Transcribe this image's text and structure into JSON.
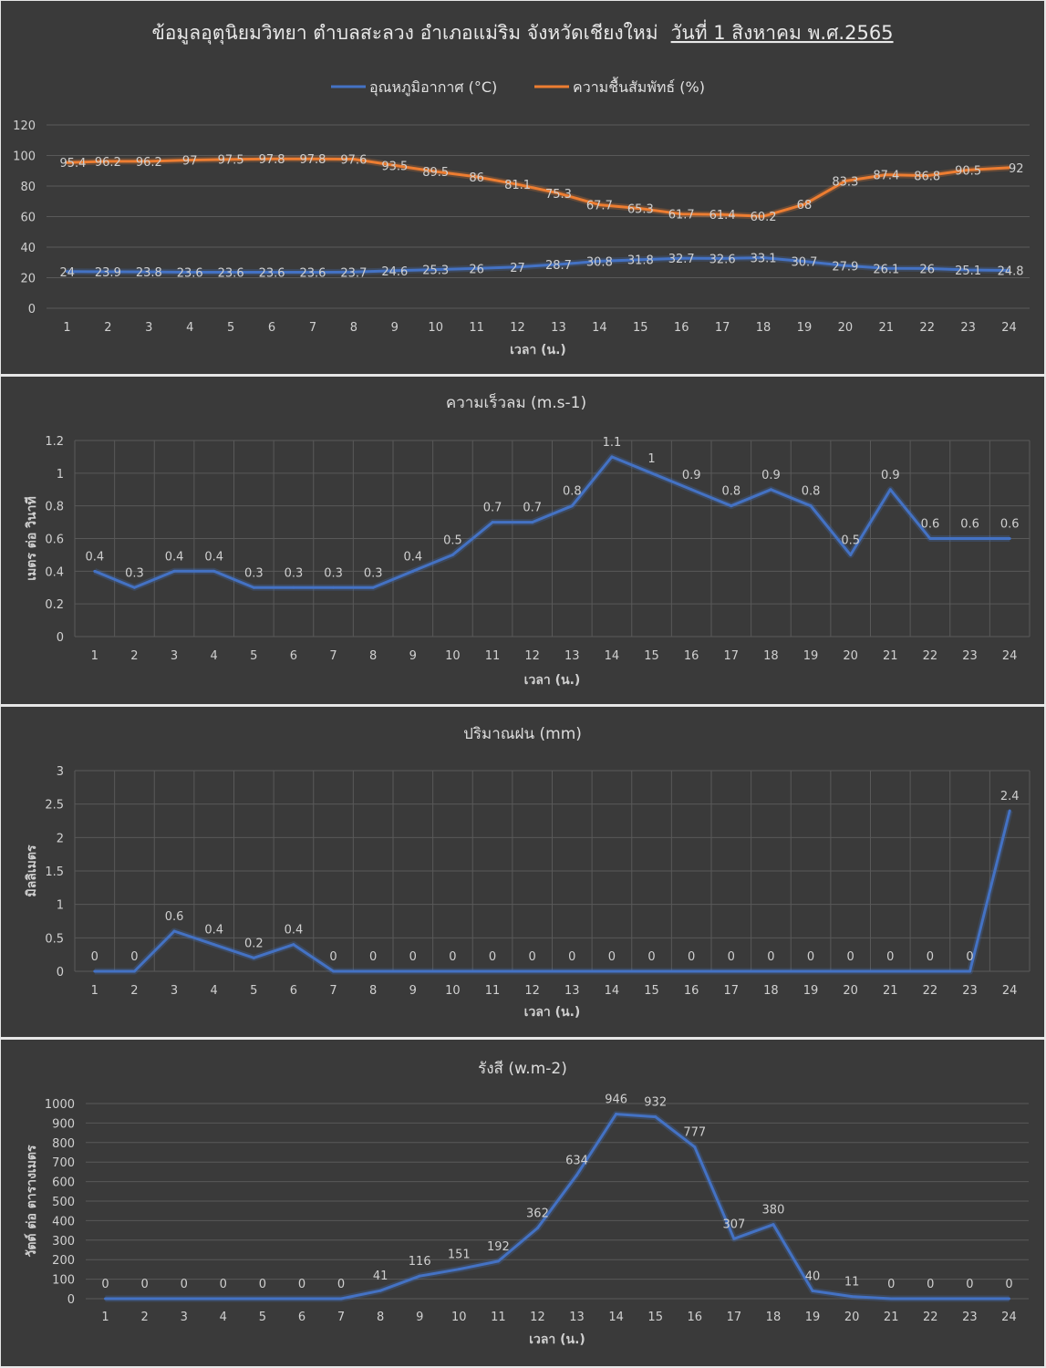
{
  "main_title": "ข้อมูลอุตุนิยมวิทยา ตำบลสะลวง อำเภอแม่ริม จังหวัดเชียงใหม่",
  "main_title_date": "วันที่ 1 สิงหาคม พ.ศ.2565",
  "colors": {
    "background": "#3a3a3a",
    "grid": "#595959",
    "blue": "#4472c4",
    "orange": "#ed7d31",
    "text": "#d0d0d0"
  },
  "chart_data": [
    {
      "type": "line",
      "title": "",
      "xlabel": "เวลา (น.)",
      "ylabel": "",
      "x": [
        1,
        2,
        3,
        4,
        5,
        6,
        7,
        8,
        9,
        10,
        11,
        12,
        13,
        14,
        15,
        16,
        17,
        18,
        19,
        20,
        21,
        22,
        23,
        24
      ],
      "yticks": [
        "0",
        "20",
        "40",
        "60",
        "80",
        "100",
        "120"
      ],
      "ylim": [
        0,
        120
      ],
      "grid": "horizontal",
      "legend": "top",
      "series": [
        {
          "name": "อุณหภูมิอากาศ (°C)",
          "color": "#4472c4",
          "values": [
            24,
            23.9,
            23.8,
            23.6,
            23.6,
            23.6,
            23.6,
            23.7,
            24.6,
            25.3,
            26,
            27,
            28.7,
            30.8,
            31.8,
            32.7,
            32.6,
            33.1,
            30.7,
            27.9,
            26.1,
            26,
            25.1,
            24.8
          ]
        },
        {
          "name": "ความชื้นสัมพัทธ์ (%)",
          "color": "#ed7d31",
          "values": [
            95.4,
            96.2,
            96.2,
            97,
            97.5,
            97.8,
            97.8,
            97.6,
            93.5,
            89.5,
            86,
            81.1,
            75.3,
            67.7,
            65.3,
            61.7,
            61.4,
            60.2,
            68,
            83.3,
            87.4,
            86.8,
            90.5,
            92
          ]
        }
      ]
    },
    {
      "type": "line",
      "title": "ความเร็วลม (m.s-1)",
      "xlabel": "เวลา (น.)",
      "ylabel": "เมตร ต่อ วินาที",
      "x": [
        1,
        2,
        3,
        4,
        5,
        6,
        7,
        8,
        9,
        10,
        11,
        12,
        13,
        14,
        15,
        16,
        17,
        18,
        19,
        20,
        21,
        22,
        23,
        24
      ],
      "yticks": [
        "0",
        "0.2",
        "0.4",
        "0.6",
        "0.8",
        "1",
        "1.2"
      ],
      "ylim": [
        0,
        1.2
      ],
      "grid": "both",
      "series": [
        {
          "color": "#4472c4",
          "values": [
            0.4,
            0.3,
            0.4,
            0.4,
            0.3,
            0.3,
            0.3,
            0.3,
            0.4,
            0.5,
            0.7,
            0.7,
            0.8,
            1.1,
            1,
            0.9,
            0.8,
            0.9,
            0.8,
            0.5,
            0.9,
            0.6,
            0.6,
            0.6
          ]
        }
      ]
    },
    {
      "type": "line",
      "title": "ปริมาณฝน (mm)",
      "xlabel": "เวลา (น.)",
      "ylabel": "มิลลิเมตร",
      "x": [
        1,
        2,
        3,
        4,
        5,
        6,
        7,
        8,
        9,
        10,
        11,
        12,
        13,
        14,
        15,
        16,
        17,
        18,
        19,
        20,
        21,
        22,
        23,
        24
      ],
      "yticks": [
        "0",
        "0.5",
        "1",
        "1.5",
        "2",
        "2.5",
        "3"
      ],
      "ylim": [
        0,
        3
      ],
      "grid": "both",
      "series": [
        {
          "color": "#4472c4",
          "values": [
            0,
            0,
            0.6,
            0.4,
            0.2,
            0.4,
            0,
            0,
            0,
            0,
            0,
            0,
            0,
            0,
            0,
            0,
            0,
            0,
            0,
            0,
            0,
            0,
            0,
            2.4
          ]
        }
      ]
    },
    {
      "type": "line",
      "title": "รังสี (w.m-2)",
      "xlabel": "เวลา (น.)",
      "ylabel": "วัตต์ ต่อ ตารางเมตร",
      "x": [
        1,
        2,
        3,
        4,
        5,
        6,
        7,
        8,
        9,
        10,
        11,
        12,
        13,
        14,
        15,
        16,
        17,
        18,
        19,
        20,
        21,
        22,
        23,
        24
      ],
      "yticks": [
        "0",
        "100",
        "200",
        "300",
        "400",
        "500",
        "600",
        "700",
        "800",
        "900",
        "1000"
      ],
      "ylim": [
        0,
        1000
      ],
      "grid": "horizontal",
      "series": [
        {
          "color": "#4472c4",
          "values": [
            0,
            0,
            0,
            0,
            0,
            0,
            0,
            41,
            116,
            151,
            192,
            362,
            634,
            946,
            932,
            777,
            307,
            380,
            40,
            11,
            0,
            0,
            0,
            0
          ]
        }
      ]
    }
  ]
}
